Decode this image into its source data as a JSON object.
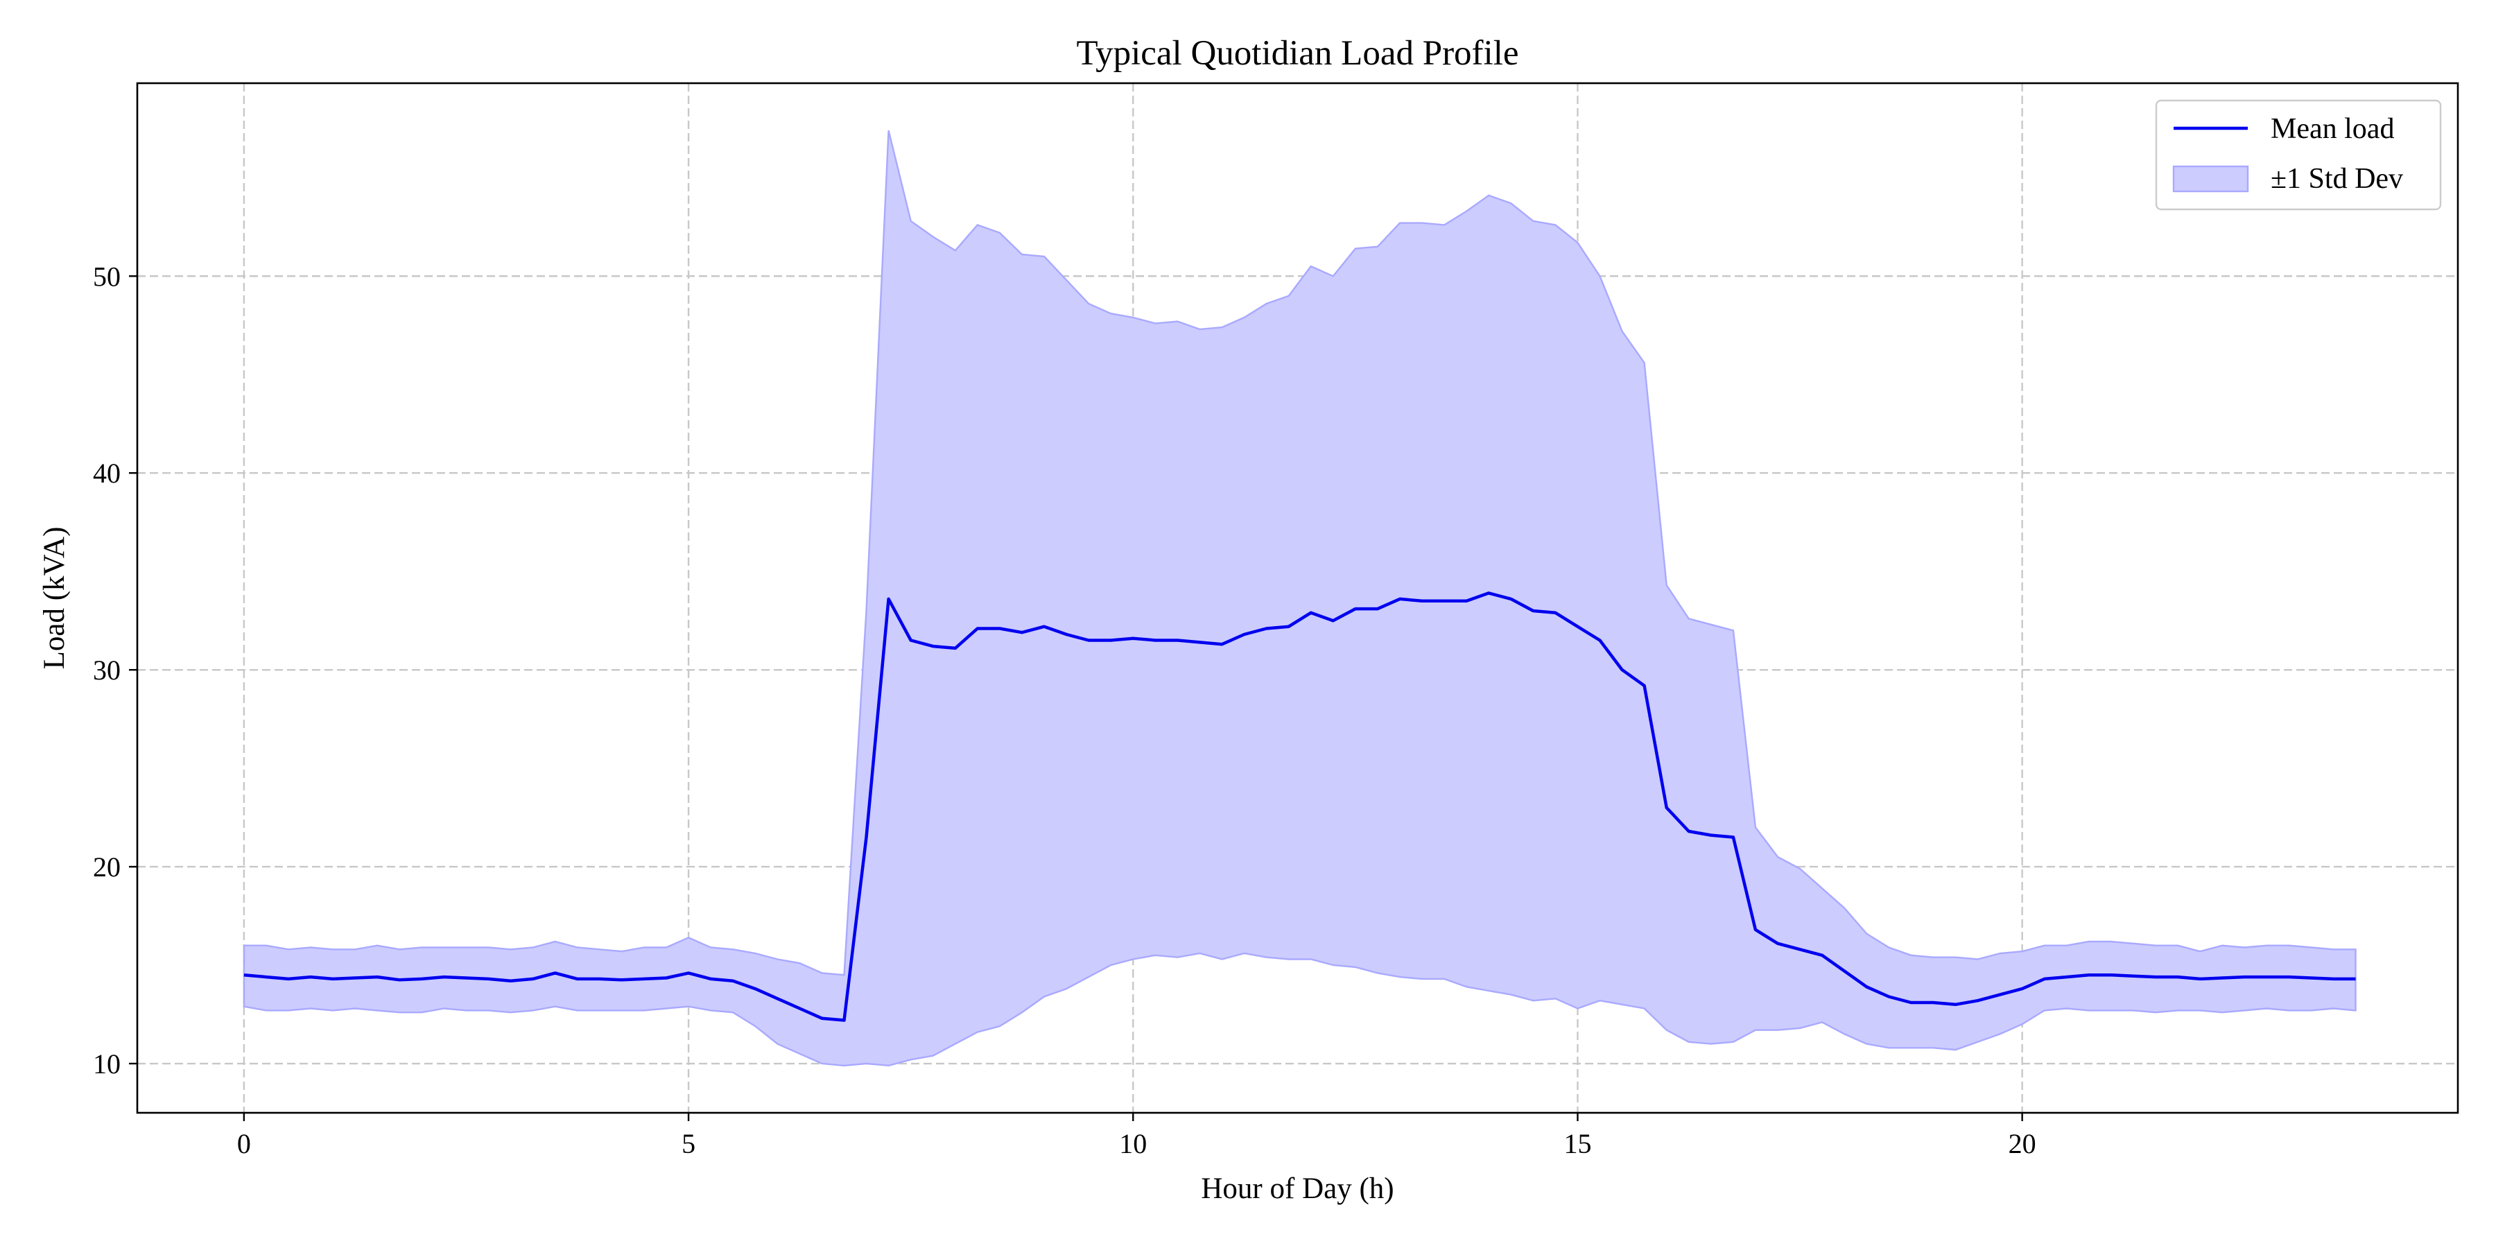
{
  "colors": {
    "mean": "#0000ee",
    "band_fill": "#ccccff",
    "band_edge": "#a9a9ff",
    "grid": "#c8c8c8"
  },
  "chart_data": {
    "type": "line",
    "title": "Typical Quotidian Load Profile",
    "xlabel": "Hour of Day (h)",
    "ylabel": "Load (kVA)",
    "xlim": [
      -1.2,
      24.9
    ],
    "ylim": [
      7.5,
      59.8
    ],
    "xticks": [
      0,
      5,
      10,
      15,
      20
    ],
    "xtick_labels": [
      "0",
      "5",
      "10",
      "15",
      "20"
    ],
    "yticks": [
      10,
      20,
      30,
      40,
      50
    ],
    "ytick_labels": [
      "10",
      "20",
      "30",
      "40",
      "50"
    ],
    "grid": true,
    "legend": {
      "position": "top-right",
      "entries": [
        "Mean load",
        "±1 Std Dev"
      ]
    },
    "x": [
      0,
      0.25,
      0.5,
      0.75,
      1,
      1.25,
      1.5,
      1.75,
      2,
      2.25,
      2.5,
      2.75,
      3,
      3.25,
      3.5,
      3.75,
      4,
      4.25,
      4.5,
      4.75,
      5,
      5.25,
      5.5,
      5.75,
      6,
      6.25,
      6.5,
      6.75,
      7,
      7.25,
      7.5,
      7.75,
      8,
      8.25,
      8.5,
      8.75,
      9,
      9.25,
      9.5,
      9.75,
      10,
      10.25,
      10.5,
      10.75,
      11,
      11.25,
      11.5,
      11.75,
      12,
      12.25,
      12.5,
      12.75,
      13,
      13.25,
      13.5,
      13.75,
      14,
      14.25,
      14.5,
      14.75,
      15,
      15.25,
      15.5,
      15.75,
      16,
      16.25,
      16.5,
      16.75,
      17,
      17.25,
      17.5,
      17.75,
      18,
      18.25,
      18.5,
      18.75,
      19,
      19.25,
      19.5,
      19.75,
      20,
      20.25,
      20.5,
      20.75,
      21,
      21.25,
      21.5,
      21.75,
      22,
      22.25,
      22.5,
      22.75,
      23,
      23.25,
      23.5,
      23.75
    ],
    "series": [
      {
        "name": "Mean load",
        "values": [
          14.5,
          14.4,
          14.3,
          14.4,
          14.3,
          14.35,
          14.4,
          14.25,
          14.3,
          14.4,
          14.35,
          14.3,
          14.2,
          14.3,
          14.6,
          14.3,
          14.3,
          14.25,
          14.3,
          14.35,
          14.6,
          14.3,
          14.2,
          13.8,
          13.3,
          12.8,
          12.3,
          12.2,
          21.5,
          33.6,
          31.5,
          31.2,
          31.1,
          32.1,
          32.1,
          31.9,
          32.2,
          31.8,
          31.5,
          31.5,
          31.6,
          31.5,
          31.5,
          31.4,
          31.3,
          31.8,
          32.1,
          32.2,
          32.9,
          32.5,
          33.1,
          33.1,
          33.6,
          33.5,
          33.5,
          33.5,
          33.9,
          33.6,
          33.0,
          32.9,
          32.2,
          31.5,
          30.0,
          29.2,
          23.0,
          21.8,
          21.6,
          21.5,
          16.8,
          16.1,
          15.8,
          15.5,
          14.7,
          13.9,
          13.4,
          13.1,
          13.1,
          13.0,
          13.2,
          13.5,
          13.8,
          14.3,
          14.4,
          14.5,
          14.5,
          14.45,
          14.4,
          14.4,
          14.3,
          14.35,
          14.4,
          14.4,
          14.4,
          14.35,
          14.3,
          14.3
        ]
      },
      {
        "name": "±1 Std Dev",
        "upper": [
          16.0,
          16.0,
          15.8,
          15.9,
          15.8,
          15.8,
          16.0,
          15.8,
          15.9,
          15.9,
          15.9,
          15.9,
          15.8,
          15.9,
          16.2,
          15.9,
          15.8,
          15.7,
          15.9,
          15.9,
          16.4,
          15.9,
          15.8,
          15.6,
          15.3,
          15.1,
          14.6,
          14.5,
          33.0,
          57.4,
          52.8,
          52.0,
          51.3,
          52.6,
          52.2,
          51.1,
          51.0,
          49.8,
          48.6,
          48.1,
          47.9,
          47.6,
          47.7,
          47.3,
          47.4,
          47.9,
          48.6,
          49.0,
          50.5,
          50.0,
          51.4,
          51.5,
          52.7,
          52.7,
          52.6,
          53.3,
          54.1,
          53.7,
          52.8,
          52.6,
          51.7,
          50.0,
          47.2,
          45.6,
          34.3,
          32.6,
          32.3,
          32.0,
          22.0,
          20.5,
          19.9,
          18.9,
          17.9,
          16.6,
          15.9,
          15.5,
          15.4,
          15.4,
          15.3,
          15.6,
          15.7,
          16.0,
          16.0,
          16.2,
          16.2,
          16.1,
          16.0,
          16.0,
          15.7,
          16.0,
          15.9,
          16.0,
          16.0,
          15.9,
          15.8,
          15.8
        ],
        "lower": [
          12.9,
          12.7,
          12.7,
          12.8,
          12.7,
          12.8,
          12.7,
          12.6,
          12.6,
          12.8,
          12.7,
          12.7,
          12.6,
          12.7,
          12.9,
          12.7,
          12.7,
          12.7,
          12.7,
          12.8,
          12.9,
          12.7,
          12.6,
          11.9,
          11.0,
          10.5,
          10.0,
          9.9,
          10.0,
          9.9,
          10.2,
          10.4,
          11.0,
          11.6,
          11.9,
          12.6,
          13.4,
          13.8,
          14.4,
          15.0,
          15.3,
          15.5,
          15.4,
          15.6,
          15.3,
          15.6,
          15.4,
          15.3,
          15.3,
          15.0,
          14.9,
          14.6,
          14.4,
          14.3,
          14.3,
          13.9,
          13.7,
          13.5,
          13.2,
          13.3,
          12.8,
          13.2,
          13.0,
          12.8,
          11.7,
          11.1,
          11.0,
          11.1,
          11.7,
          11.7,
          11.8,
          12.1,
          11.5,
          11.0,
          10.8,
          10.8,
          10.8,
          10.7,
          11.1,
          11.5,
          12.0,
          12.7,
          12.8,
          12.7,
          12.7,
          12.7,
          12.6,
          12.7,
          12.7,
          12.6,
          12.7,
          12.8,
          12.7,
          12.7,
          12.8,
          12.7
        ]
      }
    ]
  }
}
